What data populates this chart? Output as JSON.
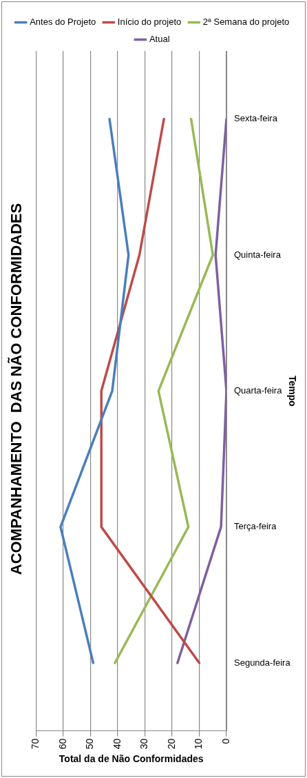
{
  "chart_data": {
    "type": "line",
    "orientation": "horizontal",
    "title": "ACOMPANHAMENTO  DAS NÃO CONFORMIDADES",
    "xlabel": "Total da de Não Conformidades",
    "ylabel": "Tempo",
    "categories": [
      "Sexta-feira",
      "Quinta-feira",
      "Quarta-feira",
      "Terça-feira",
      "Segunda-feira"
    ],
    "series": [
      {
        "name": "Antes do Projeto",
        "color": "#4a7ebb",
        "values": [
          43,
          36,
          42,
          61,
          49
        ]
      },
      {
        "name": "Início do projeto",
        "color": "#be4b48",
        "values": [
          23,
          32,
          46,
          46,
          10
        ]
      },
      {
        "name": "2ª Semana do projeto",
        "color": "#98b954",
        "values": [
          13,
          5,
          25,
          14,
          41
        ]
      },
      {
        "name": "Atual",
        "color": "#7d60a0",
        "values": [
          0,
          4,
          0,
          2,
          18
        ]
      }
    ],
    "xlim": [
      70,
      0
    ],
    "xticks": [
      70,
      60,
      50,
      40,
      30,
      20,
      10,
      0
    ],
    "grid": "x",
    "legend": "top",
    "marker": "none",
    "line_style": "solid"
  }
}
